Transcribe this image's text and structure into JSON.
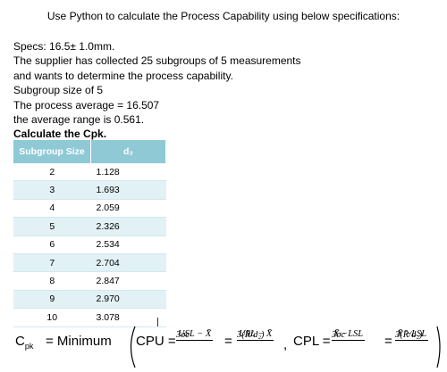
{
  "header": {
    "title": "Use Python to calculate the Process Capability using below specifications:"
  },
  "specs": {
    "line1": "Specs: 16.5± 1.0mm.",
    "line2": "The supplier has collected 25 subgroups of 5 measurements",
    "line3": "and wants to determine the process capability.",
    "line4": "Subgroup size of 5",
    "line5": "The process average = 16.507",
    "line6": "the average range is 0.561.",
    "task_prefix": "Calculate the ",
    "task_word": "Cpk",
    "task_suffix": "."
  },
  "table": {
    "headers": [
      "Subgroup Size",
      "d₂"
    ],
    "rows": [
      {
        "n": "2",
        "d2": "1.128"
      },
      {
        "n": "3",
        "d2": "1.693"
      },
      {
        "n": "4",
        "d2": "2.059"
      },
      {
        "n": "5",
        "d2": "2.326"
      },
      {
        "n": "6",
        "d2": "2.534"
      },
      {
        "n": "7",
        "d2": "2.704"
      },
      {
        "n": "8",
        "d2": "2.847"
      },
      {
        "n": "9",
        "d2": "2.970"
      },
      {
        "n": "10",
        "d2": "3.078"
      }
    ]
  },
  "formula": {
    "cpk": "C",
    "cpk_sub": "pk",
    "minimum": "= Minimum",
    "cpu": "CPU =",
    "cpl": "CPL =",
    "eq": "=",
    "comma": ",",
    "cpu_num": "USL − X̄",
    "cpu_den": "3σc",
    "cpu_alt_num": "USL − X̄",
    "cpu_alt_den": "3(R̄/d₂)",
    "cpl_num": "X̄ −LSL",
    "cpl_den": "3σc",
    "cpl_alt_num": "X̄ −LSL",
    "cpl_alt_den": "3(R̄/d₂)"
  }
}
